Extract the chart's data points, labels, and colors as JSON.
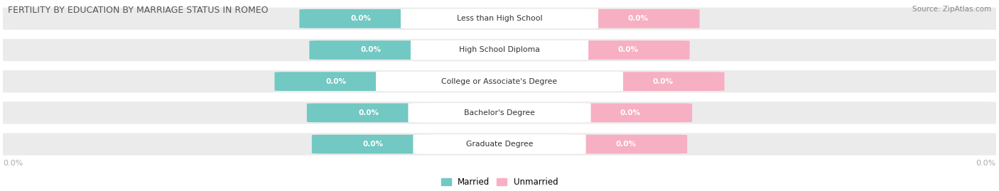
{
  "title": "FERTILITY BY EDUCATION BY MARRIAGE STATUS IN ROMEO",
  "source": "Source: ZipAtlas.com",
  "categories": [
    "Less than High School",
    "High School Diploma",
    "College or Associate's Degree",
    "Bachelor's Degree",
    "Graduate Degree"
  ],
  "married_values": [
    0.0,
    0.0,
    0.0,
    0.0,
    0.0
  ],
  "unmarried_values": [
    0.0,
    0.0,
    0.0,
    0.0,
    0.0
  ],
  "married_color": "#72c8c2",
  "unmarried_color": "#f7afc3",
  "row_bg_color": "#ebebeb",
  "title_color": "#555555",
  "source_color": "#888888",
  "value_color": "#ffffff",
  "label_color": "#333333",
  "axis_value_color": "#aaaaaa",
  "figsize": [
    14.06,
    2.69
  ],
  "dpi": 100
}
